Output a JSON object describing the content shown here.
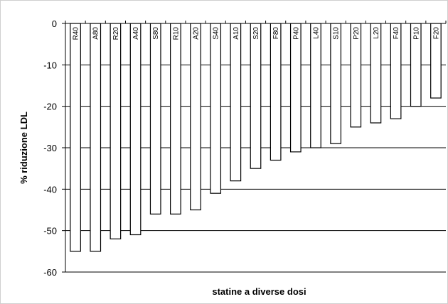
{
  "chart_data": {
    "type": "bar",
    "title": "",
    "xlabel": "statine a diverse dosi",
    "ylabel": "% riduzione LDL",
    "ylim": [
      -60,
      0
    ],
    "yticks": [
      0,
      -10,
      -20,
      -30,
      -40,
      -50,
      -60
    ],
    "grid": true,
    "categories": [
      "R40",
      "A80",
      "R20",
      "A40",
      "S80",
      "R10",
      "A20",
      "S40",
      "A10",
      "S20",
      "F80",
      "P40",
      "L40",
      "S10",
      "P20",
      "L20",
      "F40",
      "P10",
      "F20"
    ],
    "values": [
      -55,
      -55,
      -52,
      -51,
      -46,
      -46,
      -45,
      -41,
      -38,
      -35,
      -33,
      -31,
      -30,
      -29,
      -25,
      -24,
      -23,
      -20,
      -18
    ]
  }
}
